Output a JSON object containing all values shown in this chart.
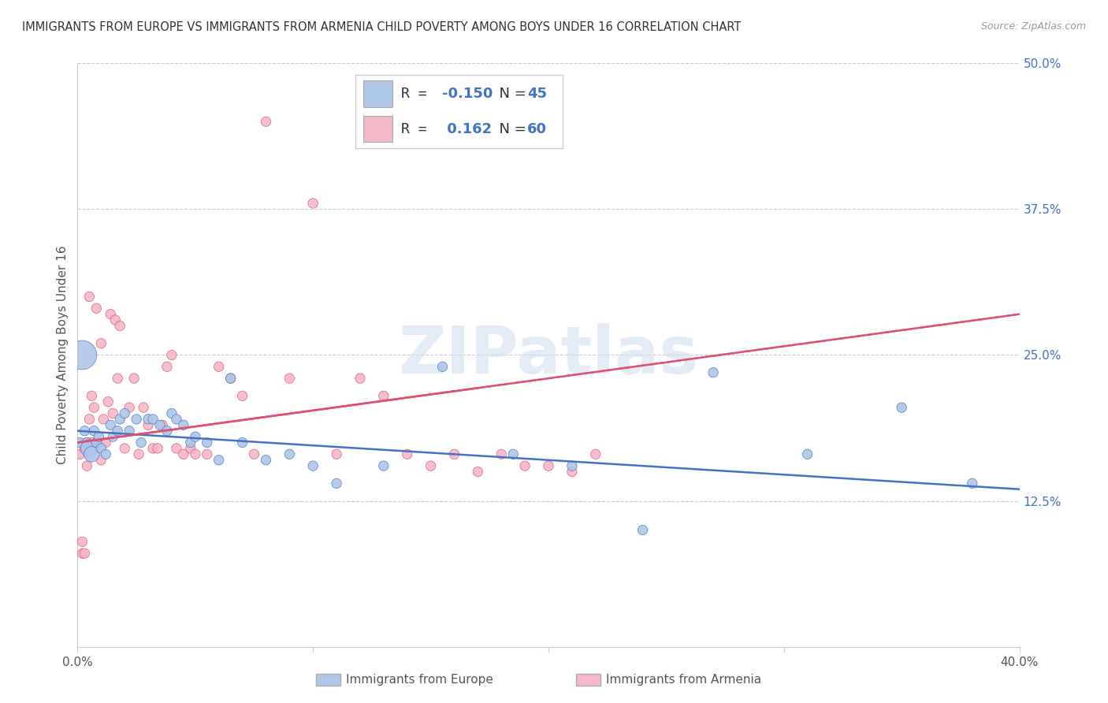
{
  "title": "IMMIGRANTS FROM EUROPE VS IMMIGRANTS FROM ARMENIA CHILD POVERTY AMONG BOYS UNDER 16 CORRELATION CHART",
  "source": "Source: ZipAtlas.com",
  "ylabel": "Child Poverty Among Boys Under 16",
  "xlim": [
    0.0,
    0.4
  ],
  "ylim": [
    0.0,
    0.5
  ],
  "yticks_right": [
    0.125,
    0.25,
    0.375,
    0.5
  ],
  "yticklabels_right": [
    "12.5%",
    "25.0%",
    "37.5%",
    "50.0%"
  ],
  "blue_color": "#aec6e8",
  "blue_line_color": "#4472c4",
  "pink_color": "#f4b8c8",
  "pink_line_color": "#e05070",
  "watermark_color": "#d0dff0",
  "blue_scatter_x": [
    0.001,
    0.002,
    0.003,
    0.004,
    0.005,
    0.006,
    0.007,
    0.008,
    0.009,
    0.01,
    0.012,
    0.014,
    0.015,
    0.017,
    0.018,
    0.02,
    0.022,
    0.025,
    0.027,
    0.03,
    0.032,
    0.035,
    0.038,
    0.04,
    0.042,
    0.045,
    0.048,
    0.05,
    0.055,
    0.06,
    0.065,
    0.07,
    0.08,
    0.09,
    0.1,
    0.11,
    0.13,
    0.155,
    0.185,
    0.21,
    0.24,
    0.27,
    0.31,
    0.35,
    0.38
  ],
  "blue_scatter_y": [
    0.175,
    0.25,
    0.185,
    0.175,
    0.17,
    0.165,
    0.185,
    0.175,
    0.18,
    0.17,
    0.165,
    0.19,
    0.18,
    0.185,
    0.195,
    0.2,
    0.185,
    0.195,
    0.175,
    0.195,
    0.195,
    0.19,
    0.185,
    0.2,
    0.195,
    0.19,
    0.175,
    0.18,
    0.175,
    0.16,
    0.23,
    0.175,
    0.16,
    0.165,
    0.155,
    0.14,
    0.155,
    0.24,
    0.165,
    0.155,
    0.1,
    0.235,
    0.165,
    0.205,
    0.14
  ],
  "blue_scatter_sizes": [
    80,
    700,
    80,
    80,
    250,
    200,
    80,
    80,
    80,
    80,
    80,
    80,
    80,
    80,
    80,
    80,
    80,
    80,
    80,
    80,
    80,
    80,
    80,
    80,
    80,
    80,
    80,
    80,
    80,
    80,
    80,
    80,
    80,
    80,
    80,
    80,
    80,
    80,
    80,
    80,
    80,
    80,
    80,
    80,
    80
  ],
  "pink_scatter_x": [
    0.001,
    0.002,
    0.002,
    0.003,
    0.003,
    0.004,
    0.004,
    0.005,
    0.005,
    0.006,
    0.006,
    0.007,
    0.007,
    0.008,
    0.009,
    0.01,
    0.01,
    0.011,
    0.012,
    0.013,
    0.014,
    0.015,
    0.016,
    0.017,
    0.018,
    0.02,
    0.022,
    0.024,
    0.026,
    0.028,
    0.03,
    0.032,
    0.034,
    0.036,
    0.038,
    0.04,
    0.042,
    0.045,
    0.048,
    0.05,
    0.055,
    0.06,
    0.065,
    0.07,
    0.075,
    0.08,
    0.09,
    0.1,
    0.11,
    0.12,
    0.13,
    0.14,
    0.15,
    0.16,
    0.17,
    0.18,
    0.19,
    0.2,
    0.21,
    0.22
  ],
  "pink_scatter_y": [
    0.165,
    0.09,
    0.08,
    0.17,
    0.08,
    0.175,
    0.155,
    0.3,
    0.195,
    0.215,
    0.175,
    0.17,
    0.205,
    0.29,
    0.175,
    0.26,
    0.16,
    0.195,
    0.175,
    0.21,
    0.285,
    0.2,
    0.28,
    0.23,
    0.275,
    0.17,
    0.205,
    0.23,
    0.165,
    0.205,
    0.19,
    0.17,
    0.17,
    0.19,
    0.24,
    0.25,
    0.17,
    0.165,
    0.17,
    0.165,
    0.165,
    0.24,
    0.23,
    0.215,
    0.165,
    0.45,
    0.23,
    0.38,
    0.165,
    0.23,
    0.215,
    0.165,
    0.155,
    0.165,
    0.15,
    0.165,
    0.155,
    0.155,
    0.15,
    0.165
  ],
  "pink_scatter_sizes": [
    80,
    80,
    80,
    80,
    80,
    80,
    80,
    80,
    80,
    80,
    80,
    80,
    80,
    80,
    80,
    80,
    80,
    80,
    80,
    80,
    80,
    80,
    80,
    80,
    80,
    80,
    80,
    80,
    80,
    80,
    80,
    80,
    80,
    80,
    80,
    80,
    80,
    80,
    80,
    80,
    80,
    80,
    80,
    80,
    80,
    80,
    80,
    80,
    80,
    80,
    80,
    80,
    80,
    80,
    80,
    80,
    80,
    80,
    80,
    80
  ]
}
